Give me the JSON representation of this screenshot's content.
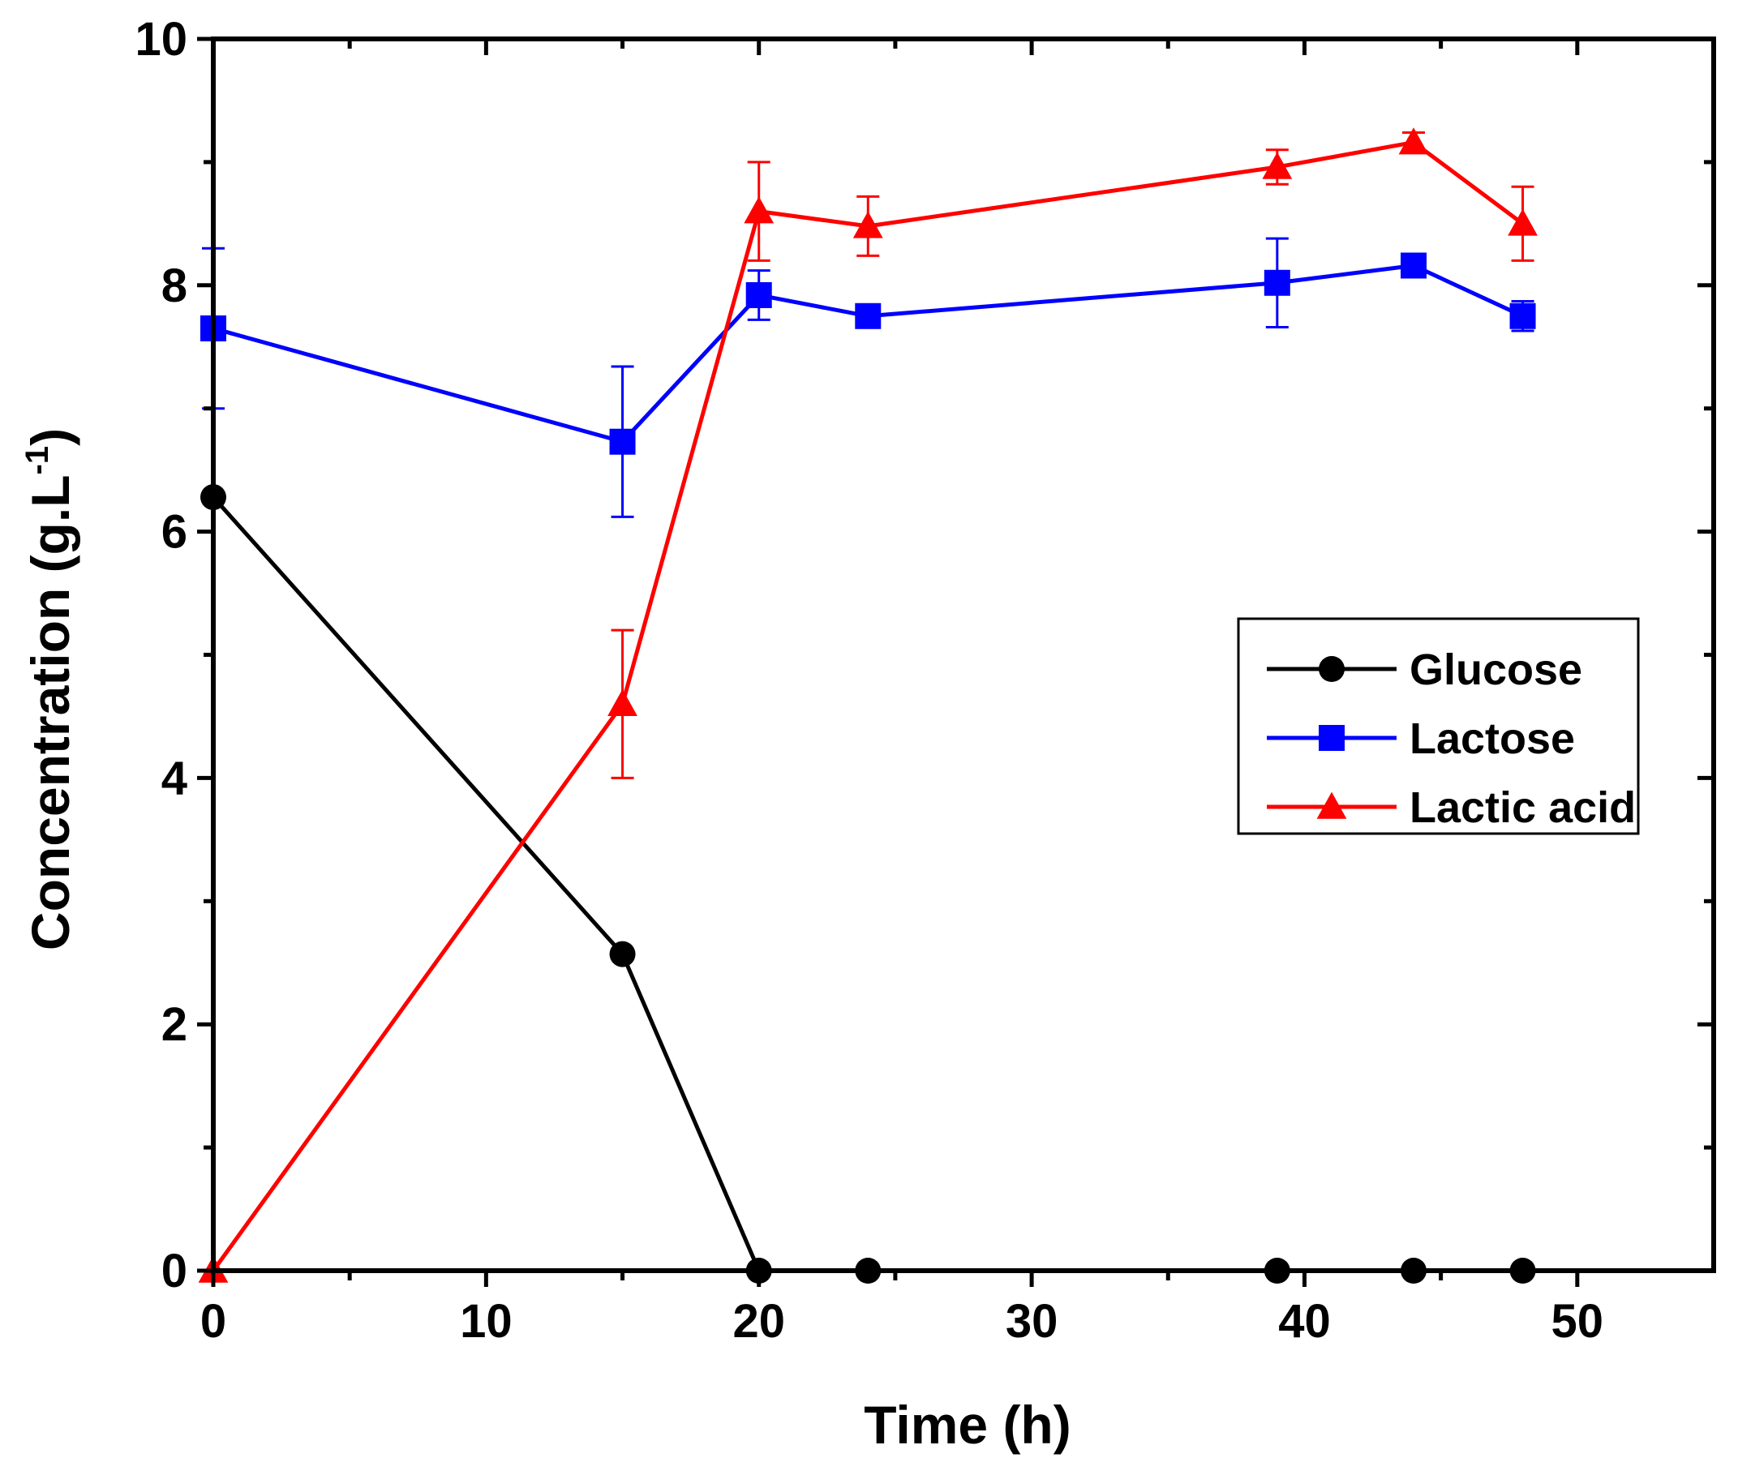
{
  "chart_data": {
    "type": "line",
    "title": "",
    "xlabel": "Time (h)",
    "ylabel": "Concentration (g.L",
    "ylabel_sup": "-1",
    "ylabel_close": ")",
    "xlim": [
      0,
      55
    ],
    "ylim": [
      0,
      10
    ],
    "x_ticks": [
      0,
      10,
      20,
      30,
      40,
      50
    ],
    "y_ticks": [
      0,
      2,
      4,
      6,
      8,
      10
    ],
    "x_minor": [
      5,
      15,
      25,
      35,
      45
    ],
    "y_minor": [
      1,
      3,
      5,
      7,
      9
    ],
    "grid": false,
    "legend_position": "center-right",
    "series": [
      {
        "name": "Glucose",
        "color": "#000000",
        "marker": "circle",
        "x": [
          0,
          15,
          20,
          24,
          39,
          44,
          48
        ],
        "y": [
          6.28,
          2.57,
          0,
          0,
          0,
          0,
          0
        ],
        "err": [
          0,
          0,
          0,
          0,
          0,
          0,
          0
        ]
      },
      {
        "name": "Lactose",
        "color": "#0000ff",
        "marker": "square",
        "x": [
          0,
          15,
          20,
          24,
          39,
          44,
          48
        ],
        "y": [
          7.65,
          6.73,
          7.92,
          7.75,
          8.02,
          8.16,
          7.75
        ],
        "err": [
          0.65,
          0.61,
          0.2,
          0,
          0.36,
          0.05,
          0.12
        ]
      },
      {
        "name": "Lactic acid",
        "color": "#ff0000",
        "marker": "triangle",
        "x": [
          0,
          15,
          20,
          24,
          39,
          44,
          48
        ],
        "y": [
          0,
          4.6,
          8.6,
          8.48,
          8.96,
          9.16,
          8.5
        ],
        "err": [
          0,
          0.6,
          0.4,
          0.24,
          0.14,
          0.08,
          0.3
        ]
      }
    ]
  }
}
